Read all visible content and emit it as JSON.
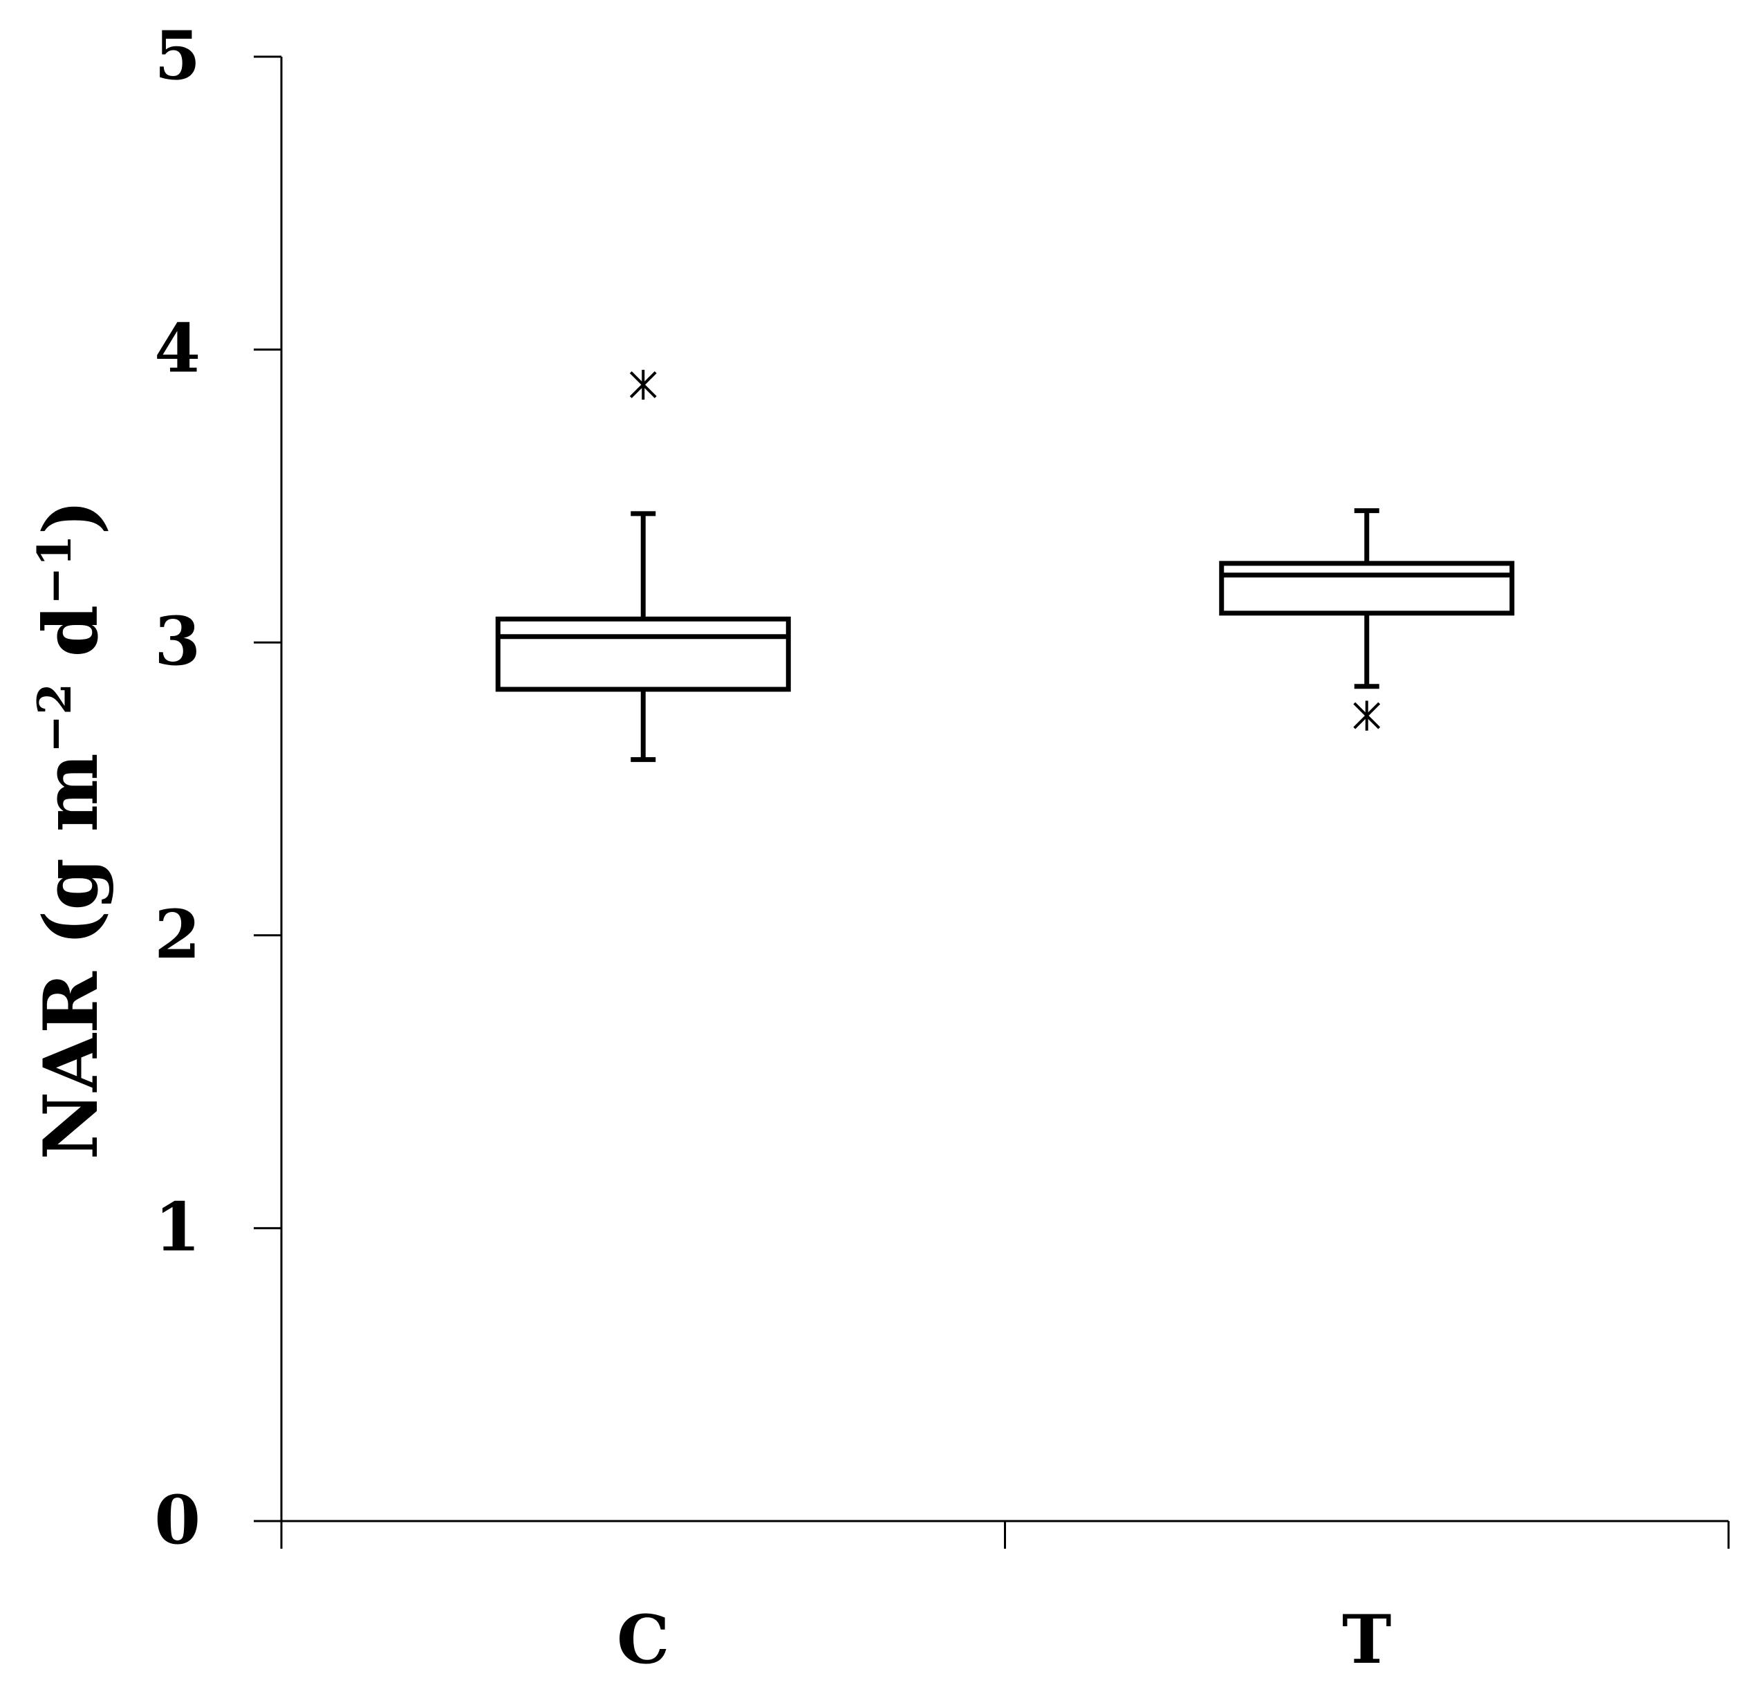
{
  "chart_data": {
    "type": "box",
    "title": "",
    "xlabel": "",
    "ylabel": "NAR (g m",
    "ylabel_sup1": "−2",
    "ylabel_mid": " d",
    "ylabel_sup2": "−1",
    "ylabel_end": ")",
    "ylim": [
      0,
      5
    ],
    "yticks": [
      "0",
      "1",
      "2",
      "3",
      "4",
      "5"
    ],
    "categories": [
      "C",
      "T"
    ],
    "boxes": [
      {
        "category": "C",
        "whisker_low": 2.6,
        "q1": 2.84,
        "median": 3.02,
        "q3": 3.08,
        "whisker_high": 3.44,
        "outliers": [
          3.88
        ]
      },
      {
        "category": "T",
        "whisker_low": 2.85,
        "q1": 3.1,
        "median": 3.23,
        "q3": 3.27,
        "whisker_high": 3.45,
        "outliers": [
          2.75
        ]
      }
    ],
    "grid": false,
    "legend": "none",
    "colors": {
      "line": "#000000",
      "fill": "#ffffff"
    }
  }
}
